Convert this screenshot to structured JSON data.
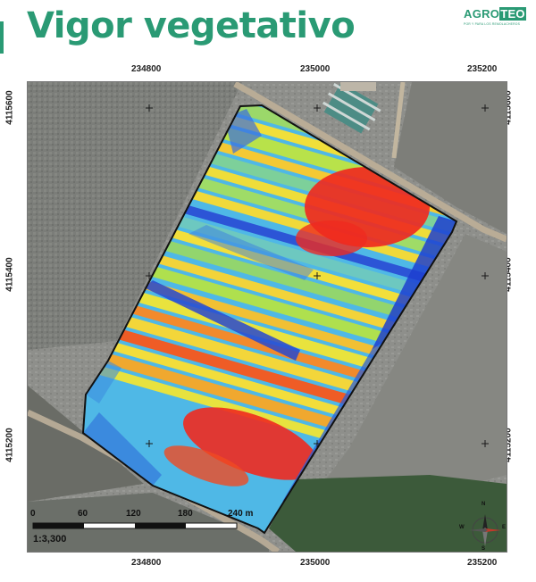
{
  "header": {
    "title": "Vigor vegetativo",
    "logo": {
      "word_a": "AGRO",
      "word_b": "TEO",
      "tagline": "POR Y PARA LOS REMOLACHEROS"
    }
  },
  "map": {
    "type": "vegetation vigor raster over satellite image",
    "x_ticks": [
      "234800",
      "235000",
      "235200"
    ],
    "y_ticks": [
      "4115600",
      "4115400",
      "4115200"
    ],
    "scale_labels": [
      "0",
      "60",
      "120",
      "180",
      "240 m"
    ],
    "scale_ratio": "1:3,300",
    "compass_labels": {
      "n": "N",
      "s": "S",
      "e": "E",
      "w": "W"
    },
    "colors": {
      "low": "#1d3fd0",
      "mid_low": "#3fb7e8",
      "mid": "#b6e34a",
      "mid_high": "#f3e33a",
      "high": "#ef2a1f",
      "title": "#2a9a74"
    }
  }
}
